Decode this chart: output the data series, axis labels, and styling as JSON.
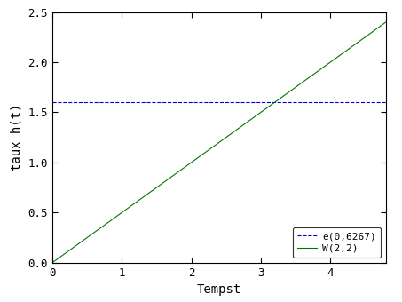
{
  "title": "",
  "xlabel": "Tempst",
  "ylabel": "taux h(t)",
  "xlim": [
    0,
    4.8
  ],
  "ylim": [
    0,
    2.5
  ],
  "xticks": [
    0,
    1,
    2,
    3,
    4
  ],
  "yticks": [
    0,
    0.5,
    1.0,
    1.5,
    2.0,
    2.5
  ],
  "exp_hazard": 1.6,
  "weibull_beta": 2,
  "weibull_eta": 2,
  "exp_color": "#0000CC",
  "weibull_color": "#007700",
  "exp_label": "e(0,6267)",
  "weibull_label": "W(2,2)",
  "legend_loc": "lower right",
  "background_color": "#ffffff",
  "figsize": [
    4.53,
    3.4
  ],
  "dpi": 100,
  "font_family": "monospace",
  "font_size": 9,
  "axis_label_size": 10,
  "legend_font_size": 8,
  "line_width": 0.8
}
